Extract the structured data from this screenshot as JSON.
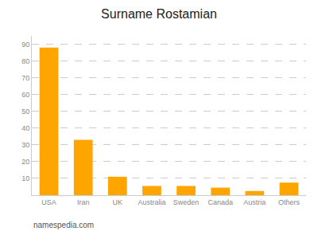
{
  "chart_data": {
    "type": "bar",
    "title": "Surname Rostamian",
    "categories": [
      "USA",
      "Iran",
      "UK",
      "Australia",
      "Sweden",
      "Canada",
      "Austria",
      "Others"
    ],
    "values": [
      88,
      33,
      11,
      5.5,
      5.5,
      4.5,
      2.5,
      7.5
    ],
    "color": "#FFA500",
    "ylim": [
      0,
      95
    ],
    "yticks": [
      10,
      20,
      30,
      40,
      50,
      60,
      70,
      80,
      90
    ],
    "grid": true,
    "annotations": [
      "namespedia.com"
    ]
  }
}
